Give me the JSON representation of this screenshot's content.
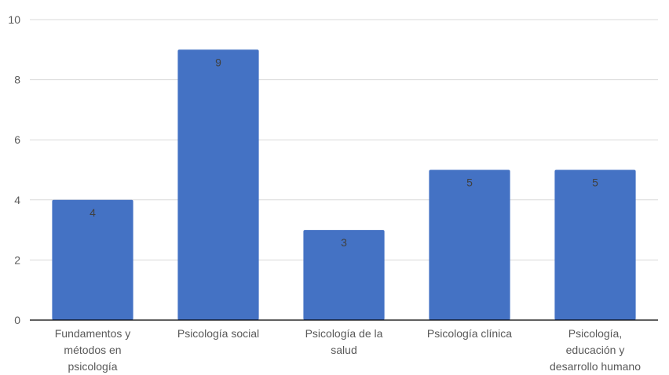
{
  "chart_data": {
    "type": "bar",
    "categories": [
      [
        "Fundamentos y",
        "métodos en",
        "psicología"
      ],
      [
        "Psicología social"
      ],
      [
        "Psicología de la",
        "salud"
      ],
      [
        "Psicología clínica"
      ],
      [
        "Psicología,",
        "educación y",
        "desarrollo humano"
      ]
    ],
    "values": [
      4,
      9,
      3,
      5,
      5
    ],
    "data_labels": [
      "4",
      "9",
      "3",
      "5",
      "5"
    ],
    "yticks": [
      "0",
      "2",
      "4",
      "6",
      "8",
      "10"
    ],
    "ylim": [
      0,
      10
    ],
    "title": "",
    "xlabel": "",
    "ylabel": "",
    "grid": true,
    "legend": "none",
    "colors": {
      "bar": "#4472C4",
      "grid": "#D9D9D9",
      "axis": "#000000",
      "text": "#595959"
    }
  }
}
